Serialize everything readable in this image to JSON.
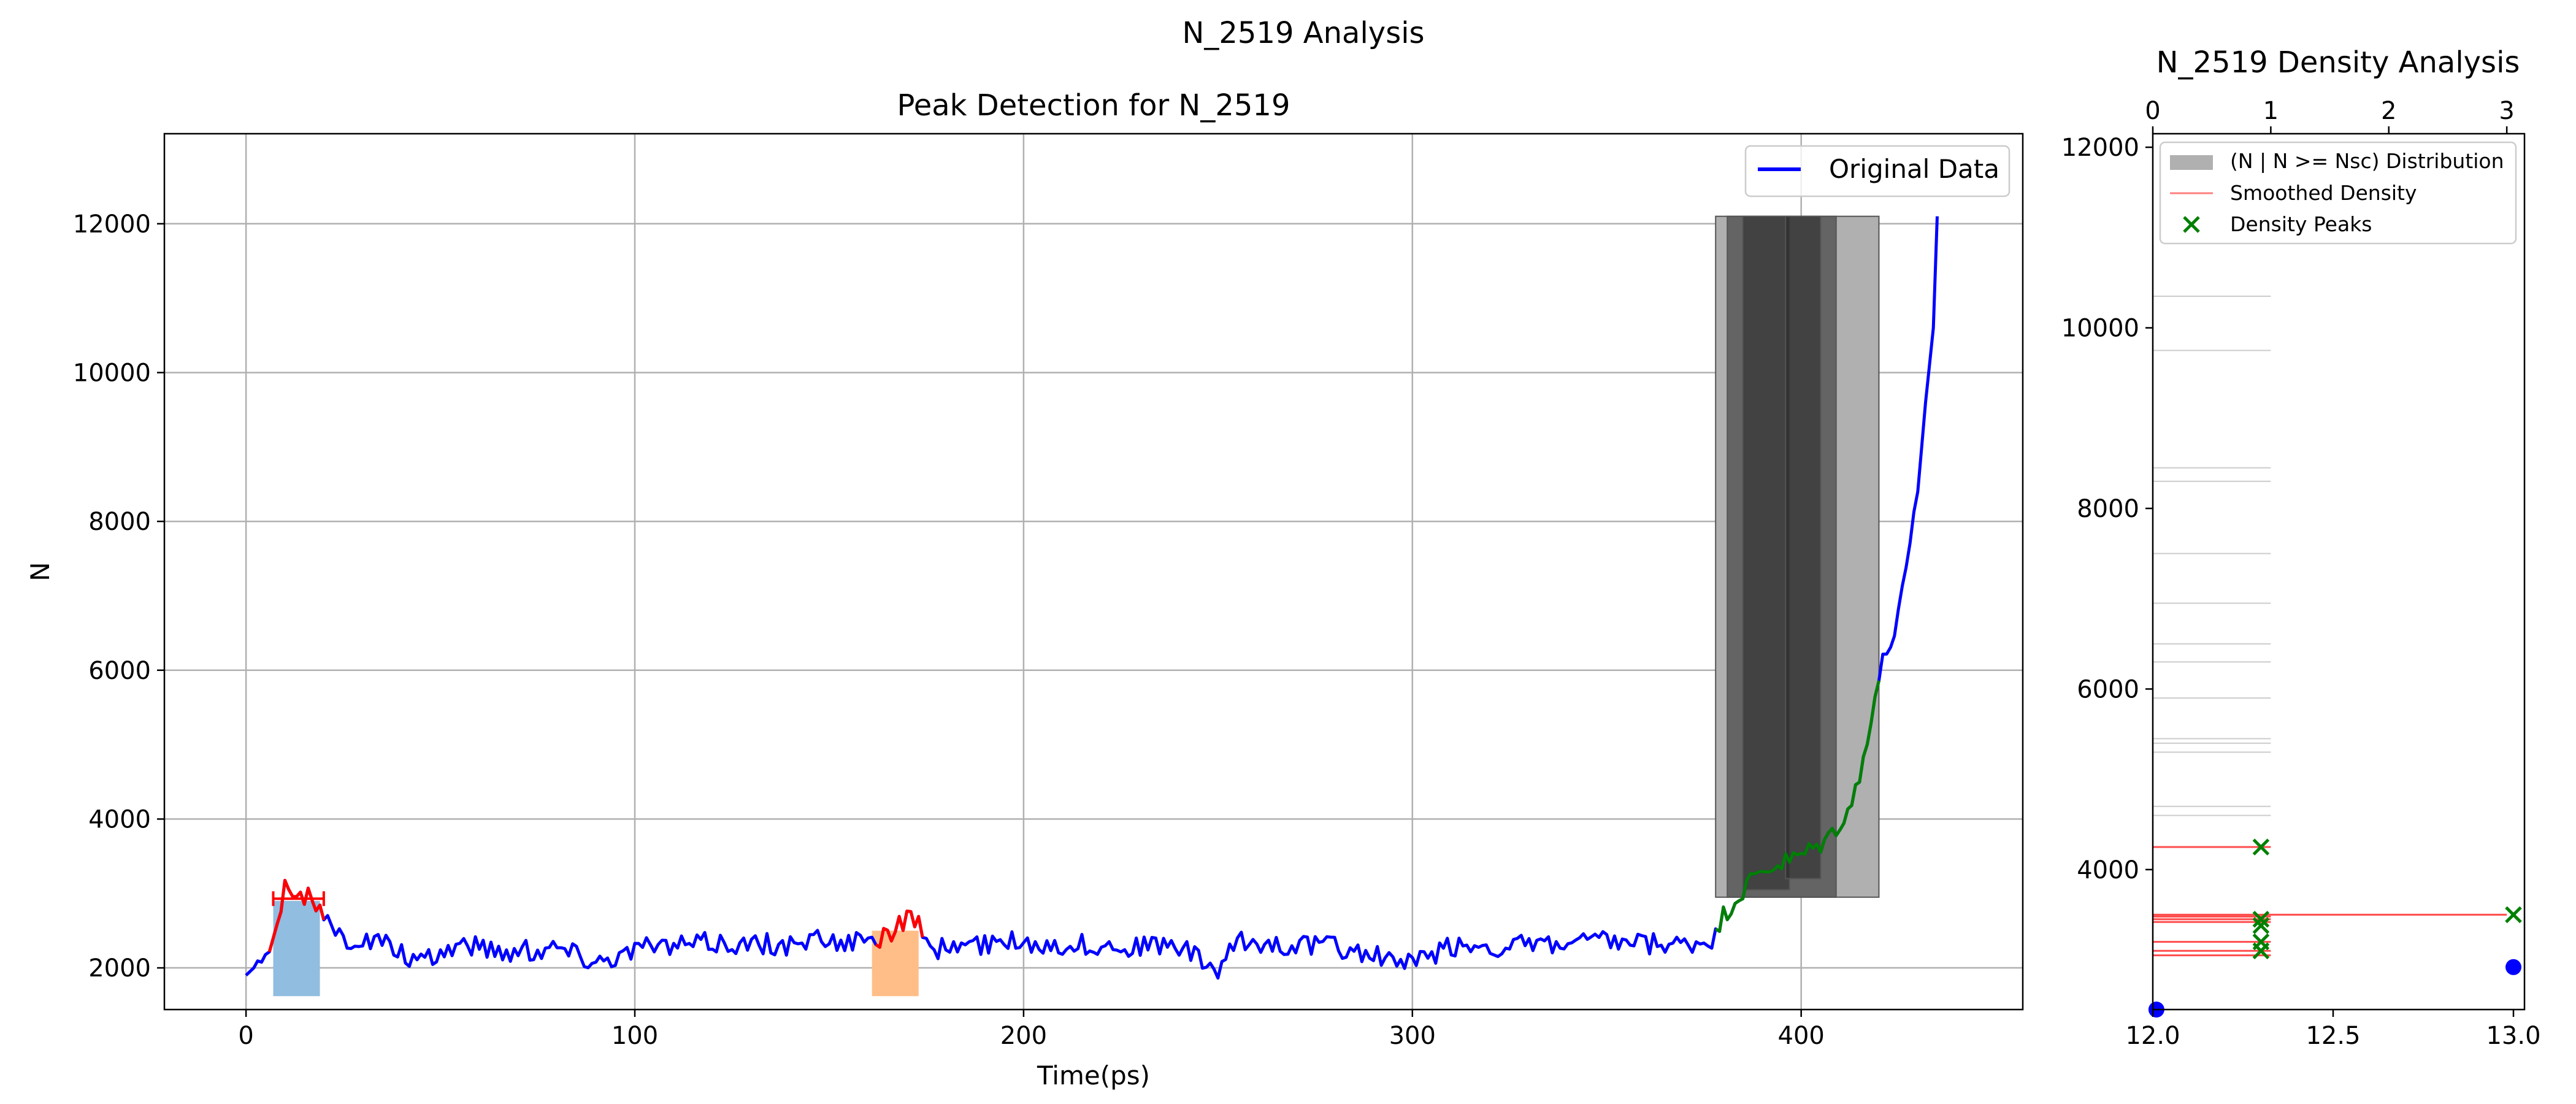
{
  "figure": {
    "suptitle": "N_2519 Analysis"
  },
  "colors": {
    "line": "#0000ff",
    "peak": "#ff0000",
    "growth": "#008000",
    "region1": "#90bde0",
    "region2": "#ffbe88",
    "hist_gray": "#b0b0b0",
    "dark_bars": "#262626",
    "grid": "#b0b0b0",
    "density_red": "#ff0000",
    "marker_green": "#008000",
    "marker_blue": "#0000ff"
  },
  "chart_data": [
    {
      "type": "line",
      "title": "Peak Detection for N_2519",
      "xlabel": "Time(ps)",
      "ylabel": "N",
      "xlim": [
        -21,
        457
      ],
      "ylim": [
        1440,
        13210
      ],
      "xticks": [
        0,
        100,
        200,
        300,
        400
      ],
      "yticks": [
        2000,
        4000,
        6000,
        8000,
        10000,
        12000
      ],
      "grid": true,
      "legend": {
        "location": "upper right",
        "entries": [
          "Original Data"
        ]
      },
      "series": [
        {
          "name": "Original Data",
          "baseline": 2300,
          "anchors": [
            [
              0,
              1900
            ],
            [
              3,
              2050
            ],
            [
              6,
              2250
            ],
            [
              8,
              2600
            ],
            [
              10,
              3150
            ],
            [
              12,
              3050
            ],
            [
              14,
              3000
            ],
            [
              16,
              2950
            ],
            [
              18,
              2850
            ],
            [
              20,
              2600
            ],
            [
              25,
              2400
            ],
            [
              35,
              2350
            ],
            [
              45,
              2050
            ],
            [
              50,
              2200
            ],
            [
              55,
              2350
            ],
            [
              60,
              2300
            ],
            [
              70,
              2200
            ],
            [
              80,
              2300
            ],
            [
              90,
              2100
            ],
            [
              100,
              2250
            ],
            [
              120,
              2350
            ],
            [
              140,
              2300
            ],
            [
              150,
              2400
            ],
            [
              160,
              2300
            ],
            [
              164,
              2450
            ],
            [
              168,
              2550
            ],
            [
              172,
              2700
            ],
            [
              174,
              2400
            ],
            [
              176,
              2200
            ],
            [
              180,
              2300
            ],
            [
              200,
              2350
            ],
            [
              220,
              2300
            ],
            [
              240,
              2300
            ],
            [
              250,
              1950
            ],
            [
              255,
              2350
            ],
            [
              280,
              2300
            ],
            [
              300,
              2050
            ],
            [
              310,
              2300
            ],
            [
              330,
              2300
            ],
            [
              350,
              2350
            ],
            [
              370,
              2300
            ],
            [
              378,
              2400
            ],
            [
              380,
              2700
            ],
            [
              383,
              2900
            ],
            [
              386,
              3100
            ],
            [
              390,
              3300
            ],
            [
              395,
              3400
            ],
            [
              400,
              3500
            ],
            [
              405,
              3650
            ],
            [
              408,
              3800
            ],
            [
              412,
              4100
            ],
            [
              415,
              4500
            ],
            [
              418,
              5400
            ],
            [
              421,
              6100
            ],
            [
              424,
              6500
            ],
            [
              426,
              7000
            ],
            [
              428,
              7600
            ],
            [
              430,
              8400
            ],
            [
              432,
              9600
            ],
            [
              434,
              10600
            ],
            [
              435,
              12100
            ]
          ],
          "noise_amplitude": 150,
          "x_range": [
            0,
            435
          ]
        }
      ],
      "highlights": {
        "peak_segments": [
          [
            6,
            20
          ],
          [
            162,
            174
          ]
        ],
        "growth_segment": [
          378,
          435
        ],
        "regions": [
          {
            "x": [
              7,
              19
            ],
            "y": [
              1620,
              2900
            ]
          },
          {
            "x": [
              161,
              173
            ],
            "y": [
              1620,
              2500
            ]
          }
        ],
        "peak_bar": {
          "x": [
            7,
            20
          ],
          "y": 2930
        },
        "histogram_bars": [
          {
            "x": [
              378,
              420
            ],
            "y": [
              2950,
              12100
            ],
            "tone": "gray"
          },
          {
            "x": [
              381,
              409
            ],
            "y": [
              2950,
              12100
            ],
            "tone": "dark"
          },
          {
            "x": [
              385,
              397
            ],
            "y": [
              3050,
              12100
            ],
            "tone": "dark"
          },
          {
            "x": [
              396,
              405
            ],
            "y": [
              3200,
              12100
            ],
            "tone": "dark"
          }
        ]
      }
    },
    {
      "type": "bar",
      "orientation": "horizontal",
      "title": "N_2519 Density Analysis",
      "xlim_top": [
        0,
        3.15
      ],
      "xticks_top": [
        0,
        1,
        2,
        3
      ],
      "xlim_bottom": [
        12.0,
        13.0
      ],
      "xticks_bottom": [
        "12.0",
        "12.5",
        "13.0"
      ],
      "ylim": [
        2450,
        12150
      ],
      "yticks": [
        4000,
        6000,
        8000,
        10000,
        12000
      ],
      "legend": {
        "location": "upper left",
        "entries": [
          "(N | N >= Nsc) Distribution",
          "Smoothed Density",
          "Density Peaks"
        ]
      },
      "distribution_lines": [
        10350,
        9750,
        8450,
        8300,
        7500,
        6950,
        6500,
        6300,
        5900,
        5450,
        5400,
        5300,
        4700,
        4600
      ],
      "red_lines": [
        {
          "y": 4250,
          "x": 1
        },
        {
          "y": 3500,
          "x": 3
        },
        {
          "y": 3480,
          "x": 1
        },
        {
          "y": 3450,
          "x": 1
        },
        {
          "y": 3420,
          "x": 1
        },
        {
          "y": 3200,
          "x": 1
        },
        {
          "y": 3100,
          "x": 1
        },
        {
          "y": 3050,
          "x": 1
        }
      ],
      "density_peaks": [
        {
          "y": 4250,
          "x": 12.3
        },
        {
          "y": 3500,
          "x": 13.0
        },
        {
          "y": 3450,
          "x": 12.3
        },
        {
          "y": 3380,
          "x": 12.3
        },
        {
          "y": 3200,
          "x": 12.3
        },
        {
          "y": 3100,
          "x": 12.3
        }
      ],
      "blue_points": [
        {
          "y": 2450,
          "x": 12.01
        },
        {
          "y": 2920,
          "x": 13.0
        }
      ]
    }
  ]
}
